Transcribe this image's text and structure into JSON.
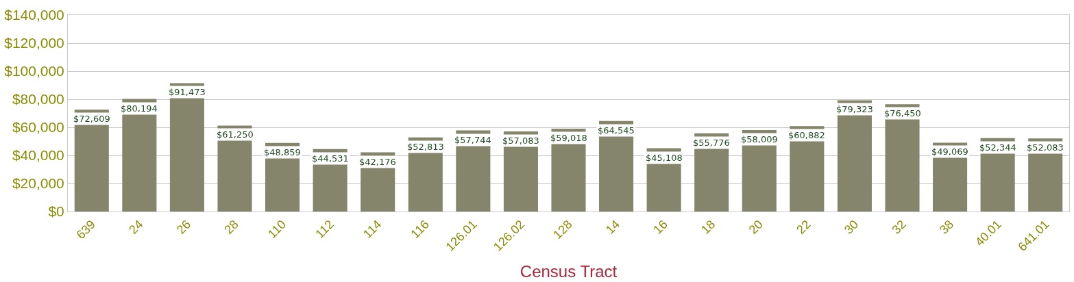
{
  "chart_data": {
    "type": "bar",
    "xlabel": "Census Tract",
    "categories": [
      "639",
      "24",
      "26",
      "28",
      "110",
      "112",
      "114",
      "116",
      "126.01",
      "126.02",
      "128",
      "14",
      "16",
      "18",
      "20",
      "22",
      "30",
      "32",
      "38",
      "40.01",
      "641.01"
    ],
    "values": [
      72609,
      80194,
      91473,
      61250,
      48859,
      44531,
      42176,
      52813,
      57744,
      57083,
      59018,
      64545,
      45108,
      55776,
      58009,
      60882,
      79323,
      76450,
      49069,
      52344,
      52083
    ],
    "color": "#85856b",
    "ylim": [
      0,
      140000
    ],
    "yticks": [
      {
        "value": 0,
        "label": "$0"
      },
      {
        "value": 20000,
        "label": "$20,000"
      },
      {
        "value": 40000,
        "label": "$40,000"
      },
      {
        "value": 60000,
        "label": "$60,000"
      },
      {
        "value": 80000,
        "label": "$80,000"
      },
      {
        "value": 100000,
        "label": "$100,000"
      },
      {
        "value": 120000,
        "label": "$120,000"
      },
      {
        "value": 140000,
        "label": "$140,000"
      }
    ],
    "value_labels": [
      "$72,609",
      "$80,194",
      "$91,473",
      "$61,250",
      "$48,859",
      "$44,531",
      "$42,176",
      "$52,813",
      "$57,744",
      "$57,083",
      "$59,018",
      "$64,545",
      "$45,108",
      "$55,776",
      "$58,009",
      "$60,882",
      "$79,323",
      "$76,450",
      "$49,069",
      "$52,344",
      "$52,083"
    ],
    "grid": "y"
  }
}
